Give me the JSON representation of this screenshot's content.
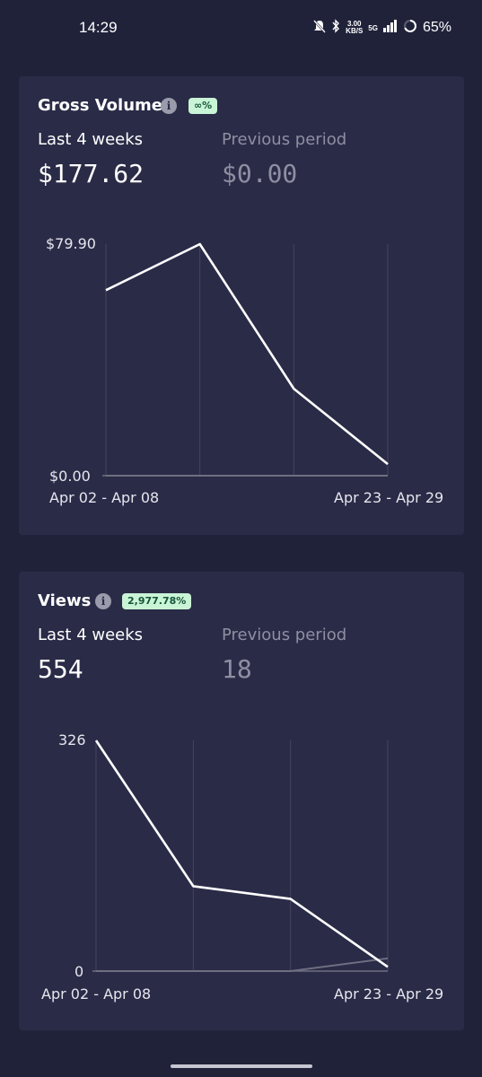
{
  "status_bar": {
    "time": "14:29",
    "network_speed_value": "3.00",
    "network_speed_unit": "KB/S",
    "network_type": "5G",
    "battery_percent": "65%"
  },
  "cards": [
    {
      "title": "Gross Volume",
      "info_icon": "i",
      "badge": "∞%",
      "current_label": "Last 4 weeks",
      "current_value": "$177.62",
      "previous_label": "Previous period",
      "previous_value": "$0.00"
    },
    {
      "title": "Views",
      "info_icon": "i",
      "badge": "2,977.78%",
      "current_label": "Last 4 weeks",
      "current_value": "554",
      "previous_label": "Previous period",
      "previous_value": "18"
    }
  ],
  "chart_data": [
    {
      "type": "line",
      "x_first_label": "Apr 02 - Apr 08",
      "x_last_label": "Apr 23 - Apr 29",
      "y_max_label": "$79.90",
      "y_min_label": "$0.00",
      "ylim": [
        0,
        79.9
      ],
      "grid": true,
      "series": [
        {
          "values": [
            64,
            79.9,
            30,
            4
          ],
          "color": "#ffffff"
        },
        {
          "values": [
            0,
            0,
            0,
            0
          ],
          "color": "#6e6f80"
        }
      ]
    },
    {
      "type": "line",
      "x_first_label": "Apr 02 - Apr 08",
      "x_last_label": "Apr 23 - Apr 29",
      "y_max_label": "326",
      "y_min_label": "0",
      "ylim": [
        0,
        326
      ],
      "grid": true,
      "series": [
        {
          "values": [
            326,
            120,
            102,
            6
          ],
          "color": "#ffffff"
        },
        {
          "values": [
            0,
            0,
            0,
            18
          ],
          "color": "#6e6f80"
        }
      ]
    }
  ]
}
